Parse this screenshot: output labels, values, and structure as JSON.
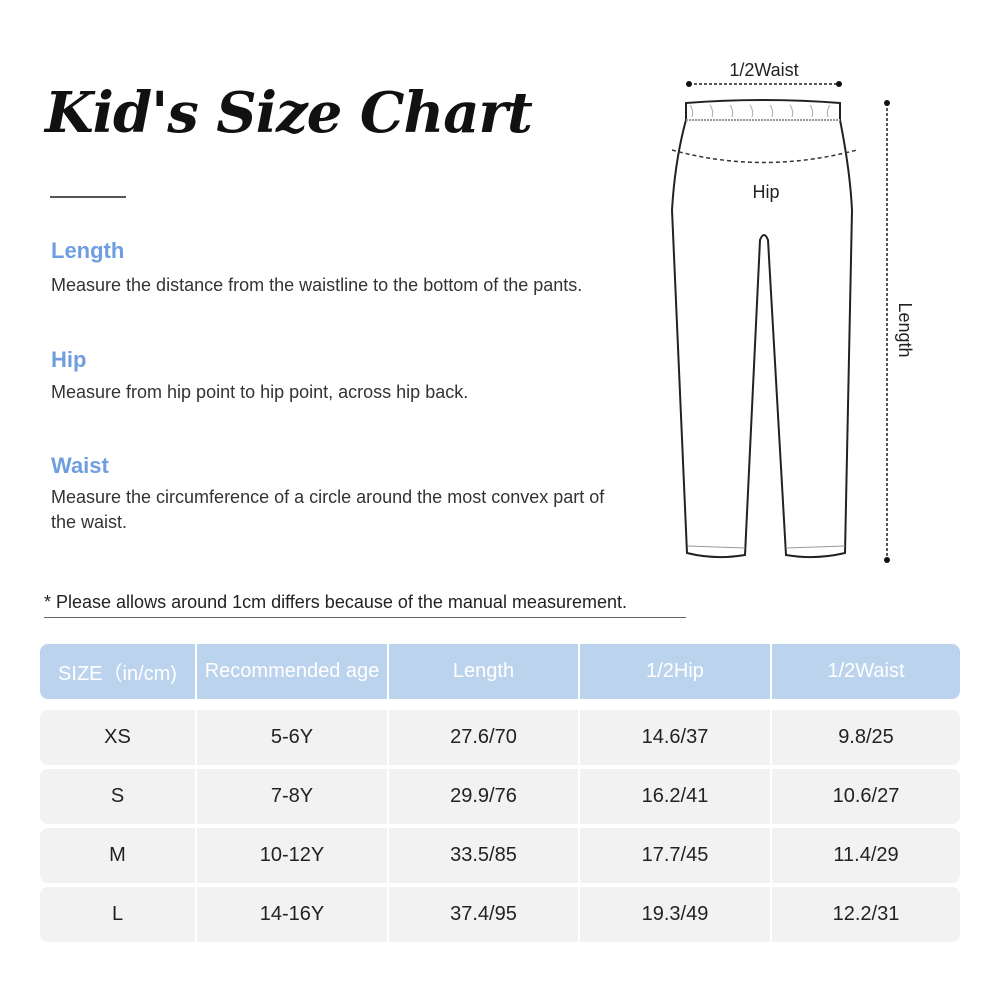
{
  "title": "Kid's Size Chart",
  "sections": [
    {
      "heading": "Length",
      "text": "Measure the distance from the waistline to the bottom of the pants."
    },
    {
      "heading": "Hip",
      "text": "Measure from hip point to hip point, across hip back."
    },
    {
      "heading": "Waist",
      "text": "Measure the circumference of a circle around the most convex part of the waist."
    }
  ],
  "note": "* Please allows around 1cm differs because of the manual measurement.",
  "diagram": {
    "waist_label": "1/2Waist",
    "hip_label": "Hip",
    "length_label": "Length"
  },
  "table": {
    "headers": [
      "SIZE（in/cm)",
      "Recommended age",
      "Length",
      "1/2Hip",
      "1/2Waist"
    ],
    "rows": [
      [
        "XS",
        "5-6Y",
        "27.6/70",
        "14.6/37",
        "9.8/25"
      ],
      [
        "S",
        "7-8Y",
        "29.9/76",
        "16.2/41",
        "10.6/27"
      ],
      [
        "M",
        "10-12Y",
        "33.5/85",
        "17.7/45",
        "11.4/29"
      ],
      [
        "L",
        "14-16Y",
        "37.4/95",
        "19.3/49",
        "12.2/31"
      ]
    ]
  },
  "colors": {
    "accent": "#6f9ee0",
    "header_bg": "#bcd3ee",
    "row_bg": "#f2f2f2"
  }
}
